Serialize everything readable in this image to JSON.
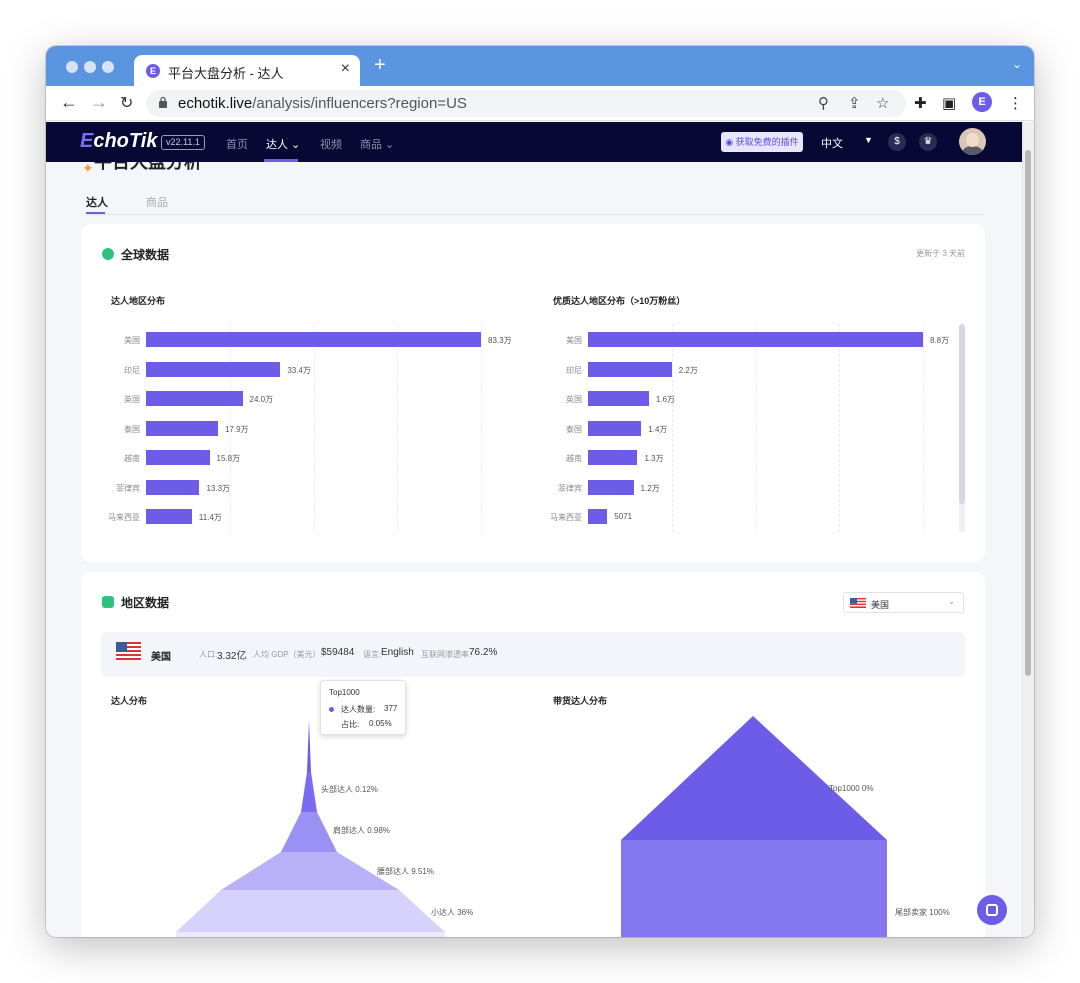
{
  "browser": {
    "tab_title": "平台大盘分析 - 达人",
    "url_domain": "echotik.live",
    "url_path": "/analysis/influencers?region=US"
  },
  "app": {
    "logo_prefix": "E",
    "logo_rest": "choTik",
    "version": "v22.11.1",
    "nav": [
      "首页",
      "达人 ⌄",
      "视频",
      "商品 ⌄"
    ],
    "plugin_button": "获取免费的插件",
    "language": "中文"
  },
  "page": {
    "title": "平台大盘分析",
    "tabs": [
      "达人",
      "商品"
    ]
  },
  "global": {
    "title": "全球数据",
    "updated": "更新于 3 天前",
    "left_chart_title": "达人地区分布",
    "right_chart_title": "优质达人地区分布（>10万粉丝）"
  },
  "chart_data": [
    {
      "type": "bar",
      "title": "达人地区分布",
      "categories": [
        "美国",
        "印尼",
        "英国",
        "泰国",
        "越南",
        "菲律宾",
        "马来西亚"
      ],
      "values": [
        833000,
        334000,
        240000,
        179000,
        158000,
        133000,
        114000
      ],
      "labels": [
        "83.3万",
        "33.4万",
        "24.0万",
        "17.9万",
        "15.8万",
        "13.3万",
        "11.4万"
      ],
      "orientation": "horizontal"
    },
    {
      "type": "bar",
      "title": "优质达人地区分布（>10万粉丝）",
      "categories": [
        "美国",
        "印尼",
        "英国",
        "泰国",
        "越南",
        "菲律宾",
        "马来西亚"
      ],
      "values": [
        88000,
        22000,
        16000,
        14000,
        13000,
        12000,
        5071
      ],
      "labels": [
        "8.8万",
        "2.2万",
        "1.6万",
        "1.4万",
        "1.3万",
        "1.2万",
        "5071"
      ],
      "orientation": "horizontal"
    }
  ],
  "region": {
    "title": "地区数据",
    "selected": "美国",
    "country": "美国",
    "population_label": "人口:",
    "population": "3.32亿",
    "gdp_label": "人均 GDP（美元）:",
    "gdp": "$59484",
    "language_label": "语言:",
    "language": "English",
    "internet_label": "互联网渗透率:",
    "internet": "76.2%",
    "left_title": "达人分布",
    "right_title": "带货达人分布",
    "funnel_left": [
      "头部达人 0.12%",
      "肩部达人 0.98%",
      "腰部达人 9.51%",
      "小达人 36%"
    ],
    "funnel_right": [
      "Top1000 0%",
      "尾部卖家 100%"
    ],
    "tooltip": {
      "title": "Top1000",
      "count_label": "达人数量:",
      "count": "377",
      "ratio_label": "占比:",
      "ratio": "0.05%"
    }
  },
  "colors": {
    "accent": "#6c5ce7",
    "header_bg": "#080835",
    "browser_bar": "#5b95e0"
  }
}
